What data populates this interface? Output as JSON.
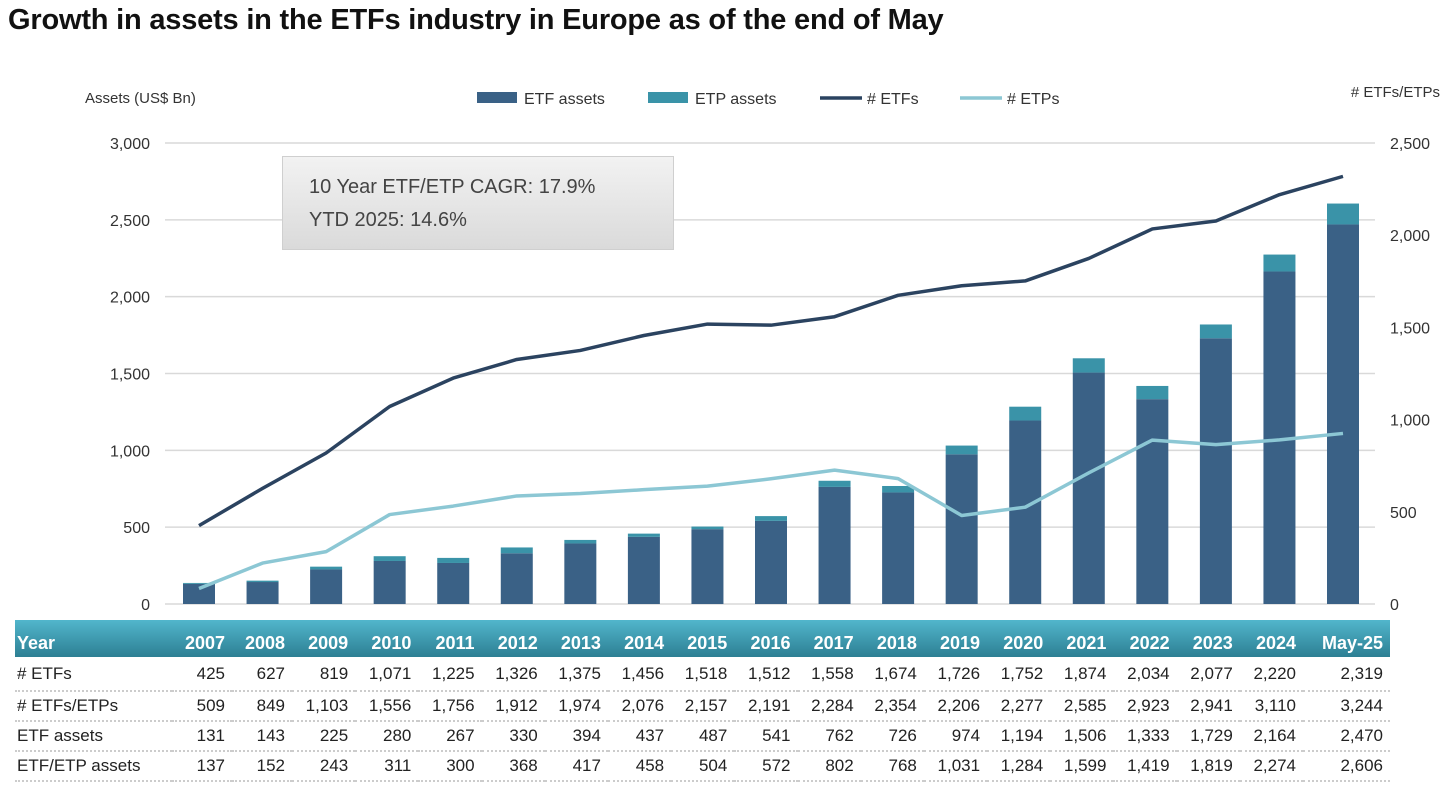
{
  "title": "Growth in assets in the ETFs industry in Europe as of the end of May",
  "callout": {
    "line1": "10 Year ETF/ETP CAGR: 17.9%",
    "line2": "YTD 2025: 14.6%"
  },
  "chart_data": {
    "type": "bar",
    "title": "Growth in assets in the ETFs industry in Europe as of the end of May",
    "ylabel": "Assets (US$ Bn)",
    "y2label": "# ETFs/ETPs",
    "ylim": [
      0,
      3000
    ],
    "y2lim": [
      0,
      2500
    ],
    "yticks": [
      "0",
      "500",
      "1,000",
      "1,500",
      "2,000",
      "2,500",
      "3,000"
    ],
    "y2ticks": [
      "0",
      "500",
      "1,000",
      "1,500",
      "2,000",
      "2,500"
    ],
    "grid": true,
    "legend_position": "top",
    "categories": [
      "2007",
      "2008",
      "2009",
      "2010",
      "2011",
      "2012",
      "2013",
      "2014",
      "2015",
      "2016",
      "2017",
      "2018",
      "2019",
      "2020",
      "2021",
      "2022",
      "2023",
      "2024",
      "May-25"
    ],
    "series": [
      {
        "name": "ETF assets",
        "type": "bar",
        "axis": "left",
        "color": "#3a6186",
        "values": [
          131,
          143,
          225,
          280,
          267,
          330,
          394,
          437,
          487,
          541,
          762,
          726,
          974,
          1194,
          1506,
          1333,
          1729,
          2164,
          2470
        ]
      },
      {
        "name": "ETP assets",
        "type": "bar-stacked",
        "axis": "left",
        "color": "#3a93a8",
        "values": [
          6,
          9,
          18,
          31,
          33,
          38,
          23,
          21,
          17,
          31,
          40,
          42,
          57,
          90,
          93,
          86,
          90,
          110,
          136
        ]
      },
      {
        "name": "# ETFs",
        "type": "line",
        "axis": "right",
        "color": "#2b4360",
        "values": [
          425,
          627,
          819,
          1071,
          1225,
          1326,
          1375,
          1456,
          1518,
          1512,
          1558,
          1674,
          1726,
          1752,
          1874,
          2034,
          2077,
          2220,
          2319
        ]
      },
      {
        "name": "# ETPs",
        "type": "line",
        "axis": "right",
        "color": "#8cc7d4",
        "values": [
          84,
          222,
          284,
          485,
          531,
          586,
          599,
          620,
          639,
          679,
          726,
          680,
          480,
          525,
          711,
          889,
          864,
          890,
          925
        ]
      }
    ]
  },
  "table": {
    "header": [
      "Year",
      "2007",
      "2008",
      "2009",
      "2010",
      "2011",
      "2012",
      "2013",
      "2014",
      "2015",
      "2016",
      "2017",
      "2018",
      "2019",
      "2020",
      "2021",
      "2022",
      "2023",
      "2024",
      "May-25"
    ],
    "rows": [
      [
        "# ETFs",
        "425",
        "627",
        "819",
        "1,071",
        "1,225",
        "1,326",
        "1,375",
        "1,456",
        "1,518",
        "1,512",
        "1,558",
        "1,674",
        "1,726",
        "1,752",
        "1,874",
        "2,034",
        "2,077",
        "2,220",
        "2,319"
      ],
      [
        "# ETFs/ETPs",
        "509",
        "849",
        "1,103",
        "1,556",
        "1,756",
        "1,912",
        "1,974",
        "2,076",
        "2,157",
        "2,191",
        "2,284",
        "2,354",
        "2,206",
        "2,277",
        "2,585",
        "2,923",
        "2,941",
        "3,110",
        "3,244"
      ],
      [
        "ETF assets",
        "131",
        "143",
        "225",
        "280",
        "267",
        "330",
        "394",
        "437",
        "487",
        "541",
        "762",
        "726",
        "974",
        "1,194",
        "1,506",
        "1,333",
        "1,729",
        "2,164",
        "2,470"
      ],
      [
        "ETF/ETP assets",
        "137",
        "152",
        "243",
        "311",
        "300",
        "368",
        "417",
        "458",
        "504",
        "572",
        "802",
        "768",
        "1,031",
        "1,284",
        "1,599",
        "1,419",
        "1,819",
        "2,274",
        "2,606"
      ]
    ]
  }
}
